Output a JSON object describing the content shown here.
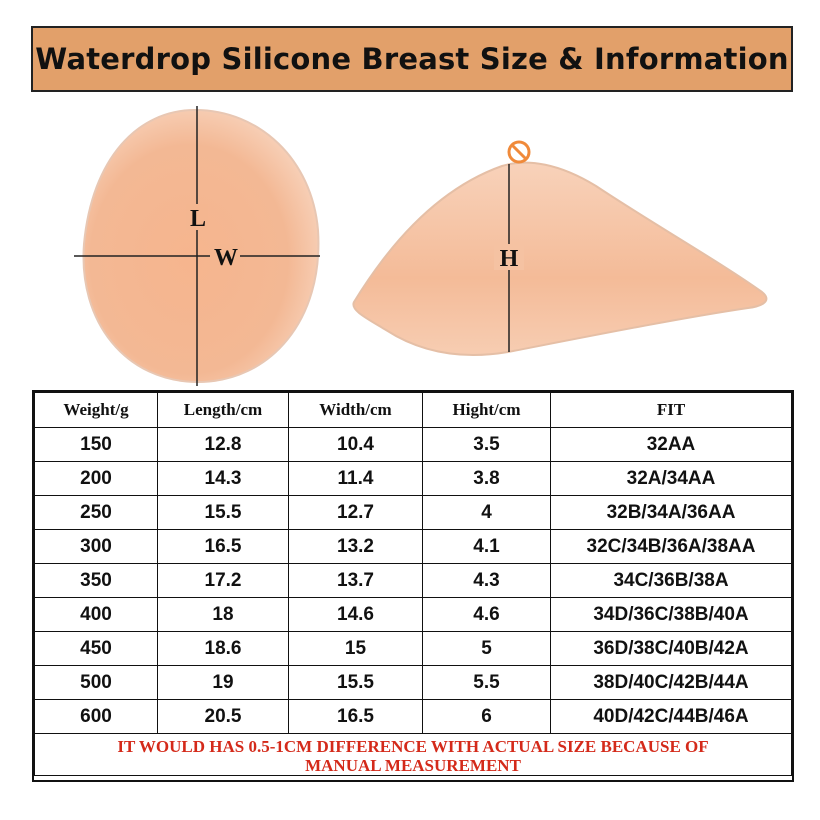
{
  "title": "Waterdrop Silicone Breast Size & Information",
  "diagram_labels": {
    "length": "L",
    "width": "W",
    "height": "H"
  },
  "colors": {
    "banner": "#e2a06a",
    "silicone": "#f3b894",
    "note_text": "#d42a1a",
    "no_sign": "#f08a3a"
  },
  "icons": {
    "no_nipple": "no-nipple-icon"
  },
  "table": {
    "headers": [
      "Weight/g",
      "Length/cm",
      "Width/cm",
      "Hight/cm",
      "FIT"
    ],
    "rows": [
      [
        "150",
        "12.8",
        "10.4",
        "3.5",
        "32AA"
      ],
      [
        "200",
        "14.3",
        "11.4",
        "3.8",
        "32A/34AA"
      ],
      [
        "250",
        "15.5",
        "12.7",
        "4",
        "32B/34A/36AA"
      ],
      [
        "300",
        "16.5",
        "13.2",
        "4.1",
        "32C/34B/36A/38AA"
      ],
      [
        "350",
        "17.2",
        "13.7",
        "4.3",
        "34C/36B/38A"
      ],
      [
        "400",
        "18",
        "14.6",
        "4.6",
        "34D/36C/38B/40A"
      ],
      [
        "450",
        "18.6",
        "15",
        "5",
        "36D/38C/40B/42A"
      ],
      [
        "500",
        "19",
        "15.5",
        "5.5",
        "38D/40C/42B/44A"
      ],
      [
        "600",
        "20.5",
        "16.5",
        "6",
        "40D/42C/44B/46A"
      ]
    ],
    "note_line1": "IT WOULD HAS 0.5-1CM DIFFERENCE WITH ACTUAL SIZE BECAUSE OF",
    "note_line2": "MANUAL MEASUREMENT"
  }
}
